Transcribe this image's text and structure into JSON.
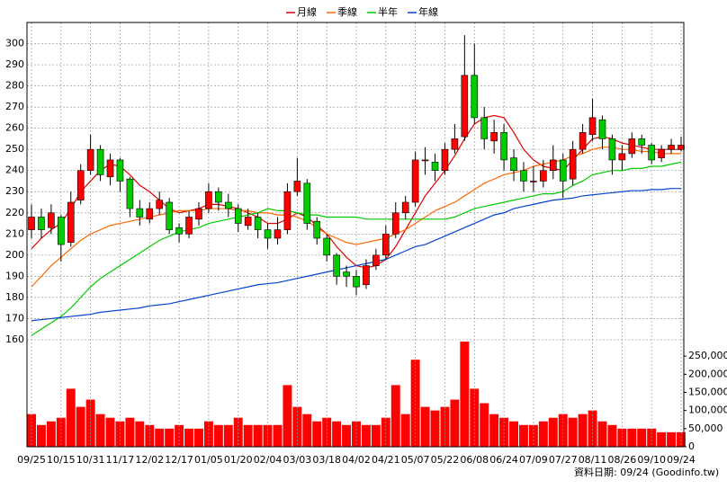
{
  "chart_data": {
    "type": "candlestick",
    "categories": [
      "09/25",
      null,
      null,
      "10/15",
      null,
      null,
      "10/31",
      null,
      null,
      "11/17",
      null,
      null,
      "12/02",
      null,
      null,
      "12/17",
      null,
      null,
      "01/05",
      null,
      null,
      "01/20",
      null,
      null,
      "02/04",
      null,
      null,
      "03/03",
      null,
      null,
      "03/18",
      null,
      null,
      "04/02",
      null,
      null,
      "04/21",
      null,
      null,
      "05/07",
      null,
      null,
      "05/22",
      null,
      null,
      "06/08",
      null,
      null,
      "06/24",
      null,
      null,
      "07/09",
      null,
      null,
      "07/27",
      null,
      null,
      "08/11",
      null,
      null,
      "08/26",
      null,
      null,
      "09/10",
      null,
      null,
      "09/24"
    ],
    "open": [
      212,
      218,
      213,
      218,
      206,
      226,
      240,
      250,
      237,
      245,
      236,
      222,
      217,
      222,
      225,
      213,
      210,
      217,
      222,
      230,
      225,
      222,
      214,
      218,
      212,
      208,
      212,
      230,
      234,
      216,
      208,
      200,
      192,
      190,
      186,
      195,
      200,
      210,
      220,
      225,
      245,
      244,
      240,
      250,
      256,
      285,
      265,
      254,
      258,
      246,
      240,
      235,
      235,
      240,
      245,
      236,
      250,
      257,
      264,
      255,
      245,
      248,
      255,
      252,
      246,
      250,
      250
    ],
    "high": [
      224,
      222,
      224,
      219,
      230,
      243,
      257,
      252,
      248,
      246,
      237,
      226,
      225,
      230,
      227,
      215,
      221,
      225,
      234,
      232,
      229,
      224,
      222,
      220,
      215,
      218,
      234,
      246,
      236,
      218,
      210,
      201,
      195,
      193,
      198,
      203,
      214,
      225,
      228,
      249,
      251,
      248,
      253,
      262,
      304,
      300,
      270,
      264,
      262,
      250,
      244,
      242,
      245,
      252,
      248,
      254,
      262,
      274,
      266,
      257,
      252,
      258,
      257,
      253,
      252,
      255,
      256
    ],
    "low": [
      208,
      208,
      210,
      197,
      204,
      224,
      238,
      235,
      233,
      230,
      218,
      214,
      215,
      219,
      210,
      206,
      208,
      214,
      220,
      221,
      218,
      211,
      212,
      208,
      203,
      205,
      210,
      228,
      212,
      205,
      197,
      186,
      185,
      181,
      184,
      193,
      198,
      208,
      217,
      223,
      238,
      235,
      238,
      248,
      254,
      262,
      250,
      248,
      240,
      235,
      230,
      230,
      232,
      236,
      227,
      233,
      248,
      254,
      250,
      238,
      240,
      246,
      248,
      243,
      244,
      248,
      249
    ],
    "close": [
      218,
      212,
      220,
      205,
      225,
      240,
      250,
      238,
      245,
      235,
      222,
      218,
      222,
      226,
      212,
      210,
      218,
      222,
      230,
      225,
      222,
      215,
      218,
      212,
      208,
      212,
      230,
      235,
      215,
      208,
      200,
      190,
      190,
      185,
      195,
      200,
      210,
      220,
      225,
      245,
      245,
      240,
      250,
      255,
      285,
      265,
      255,
      258,
      245,
      240,
      235,
      235,
      240,
      245,
      235,
      250,
      258,
      265,
      255,
      245,
      248,
      255,
      252,
      245,
      250,
      252,
      252
    ],
    "up_color": "#ff0000",
    "down_color": "#00cc00",
    "series": [
      {
        "name": "月線",
        "color": "#dd0000",
        "values": [
          203,
          208,
          212,
          215,
          222,
          230,
          235,
          240,
          243,
          242,
          238,
          233,
          230,
          226,
          222,
          220,
          221,
          222,
          224,
          224,
          223,
          222,
          220,
          218,
          215,
          215,
          217,
          220,
          218,
          214,
          210,
          204,
          199,
          195,
          194,
          195,
          198,
          204,
          212,
          220,
          228,
          234,
          240,
          247,
          255,
          262,
          265,
          266,
          265,
          258,
          250,
          245,
          242,
          241,
          240,
          245,
          250,
          255,
          256,
          255,
          253,
          252,
          251,
          250,
          250,
          250,
          250
        ]
      },
      {
        "name": "季線",
        "color": "#ff6600",
        "values": [
          185,
          190,
          195,
          199,
          203,
          207,
          210,
          212,
          214,
          215,
          216,
          217,
          218,
          219,
          220,
          221,
          221,
          221,
          222,
          222,
          222,
          221,
          221,
          220,
          220,
          219,
          219,
          218,
          216,
          213,
          210,
          208,
          206,
          205,
          206,
          207,
          208,
          210,
          212,
          215,
          218,
          221,
          223,
          225,
          228,
          231,
          234,
          236,
          238,
          239,
          240,
          242,
          243,
          244,
          245,
          247,
          248,
          250,
          251,
          251,
          250,
          250,
          249,
          249,
          248,
          248,
          248
        ]
      },
      {
        "name": "半年",
        "color": "#00cc00",
        "values": [
          162,
          165,
          168,
          171,
          175,
          180,
          185,
          189,
          192,
          195,
          198,
          201,
          204,
          207,
          209,
          211,
          212,
          213,
          215,
          216,
          217,
          218,
          219,
          220,
          222,
          221,
          221,
          220,
          219,
          219,
          218,
          218,
          218,
          218,
          217,
          217,
          217,
          217,
          217,
          217,
          217,
          217,
          217,
          218,
          220,
          222,
          223,
          224,
          225,
          226,
          227,
          228,
          229,
          229,
          230,
          233,
          235,
          238,
          239,
          240,
          240,
          241,
          241,
          242,
          242,
          243,
          244
        ]
      },
      {
        "name": "年線",
        "color": "#0044cc",
        "values": [
          169,
          169.5,
          170,
          170.5,
          171,
          171.5,
          172,
          173,
          173.5,
          174,
          174.5,
          175,
          176,
          176.5,
          177,
          178,
          179,
          180,
          181,
          182,
          183,
          184,
          185,
          186,
          186.5,
          187,
          188,
          189,
          190,
          191,
          192,
          193,
          194,
          195,
          196,
          197,
          198,
          200,
          202,
          204,
          205,
          207,
          209,
          211,
          213,
          215,
          217,
          219,
          220,
          222,
          223,
          224,
          225,
          226,
          226.5,
          227,
          228,
          228.5,
          229,
          229.5,
          230,
          230.5,
          230.5,
          231,
          231,
          231.5,
          231.5
        ]
      }
    ],
    "ylim": [
      157,
      310
    ],
    "yticks": [
      160,
      170,
      180,
      190,
      200,
      210,
      220,
      230,
      240,
      250,
      260,
      270,
      280,
      290,
      300
    ],
    "grid": true,
    "volume": {
      "color": "#ff0000",
      "values": [
        90000,
        60000,
        70000,
        80000,
        160000,
        110000,
        130000,
        90000,
        80000,
        70000,
        80000,
        70000,
        60000,
        50000,
        50000,
        60000,
        50000,
        50000,
        70000,
        60000,
        60000,
        80000,
        60000,
        60000,
        60000,
        60000,
        170000,
        110000,
        90000,
        70000,
        80000,
        70000,
        60000,
        70000,
        60000,
        60000,
        80000,
        170000,
        90000,
        240000,
        110000,
        100000,
        110000,
        130000,
        290000,
        160000,
        120000,
        90000,
        80000,
        70000,
        60000,
        60000,
        70000,
        80000,
        90000,
        80000,
        90000,
        100000,
        70000,
        60000,
        50000,
        50000,
        50000,
        50000,
        40000,
        40000,
        40000
      ],
      "ylim": [
        0,
        295000
      ],
      "yticks": [
        0,
        {
          "value": 50000,
          "label": "50,000"
        },
        {
          "value": 100000,
          "label": "100,000"
        },
        {
          "value": 150000,
          "label": "150,000"
        },
        {
          "value": 200000,
          "label": "200,000"
        },
        {
          "value": 250000,
          "label": "250,000"
        }
      ]
    },
    "footer": "資料日期: 09/24 (Goodinfo.tw)"
  }
}
